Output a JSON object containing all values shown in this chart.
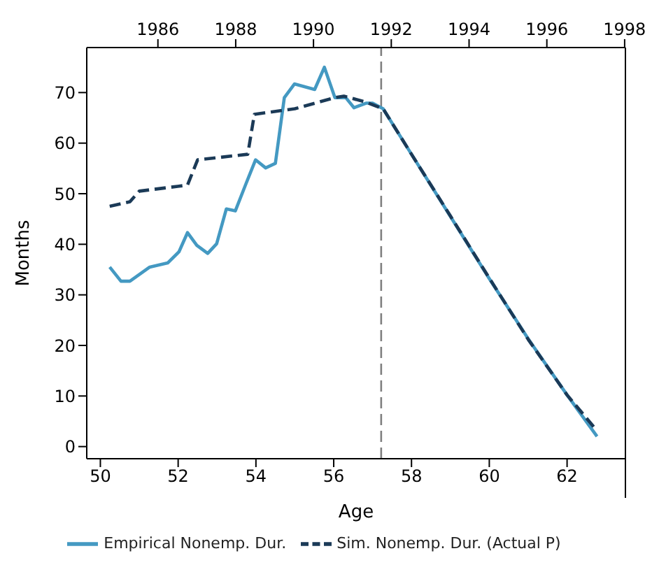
{
  "chart_data": {
    "type": "line",
    "xlabel": "Age",
    "ylabel": "Months",
    "xlim": [
      49.65,
      63.5
    ],
    "xticks": [
      50,
      52,
      54,
      56,
      58,
      60,
      62
    ],
    "x2lim": [
      1984.17,
      1998.02
    ],
    "x2ticks": [
      1986,
      1988,
      1990,
      1992,
      1994,
      1996,
      1998
    ],
    "ylim": [
      -2.4,
      78.9
    ],
    "yticks": [
      0,
      10,
      20,
      30,
      40,
      50,
      60,
      70
    ],
    "grid": false,
    "legend": "bottom",
    "ref_lines": [
      {
        "axis": "x",
        "value": 57.22,
        "color": "#808080",
        "line_style": "dashed"
      }
    ],
    "series": [
      {
        "name": "Empirical Nonemp. Dur.",
        "color": "#4499c2",
        "line_style": "solid",
        "x": [
          50.24,
          50.53,
          50.76,
          51.27,
          51.73,
          52.02,
          52.24,
          52.48,
          52.76,
          52.99,
          53.24,
          53.47,
          53.73,
          53.99,
          54.25,
          54.5,
          54.73,
          54.99,
          55.51,
          55.76,
          56.03,
          56.31,
          56.52,
          56.83,
          57.0,
          57.27,
          58.0,
          59.0,
          60.0,
          61.0,
          62.0,
          62.77
        ],
        "values": [
          35.5,
          32.7,
          32.7,
          35.5,
          36.3,
          38.5,
          42.3,
          39.8,
          38.2,
          40.1,
          47.0,
          46.6,
          51.7,
          56.7,
          55.1,
          56.0,
          69.0,
          71.7,
          70.6,
          75.0,
          69.0,
          69.0,
          67.0,
          67.9,
          67.9,
          66.8,
          57.8,
          45.5,
          33.2,
          21.3,
          10.2,
          2.0
        ]
      },
      {
        "name": "Sim. Nonemp. Dur. (Actual P)",
        "color": "#1b3a57",
        "line_style": "dashed",
        "x": [
          50.24,
          50.76,
          51.0,
          52.24,
          52.5,
          53.79,
          53.96,
          55.0,
          56.03,
          56.26,
          56.83,
          57.27,
          58.0,
          59.0,
          60.0,
          61.0,
          62.0,
          62.73
        ],
        "values": [
          47.5,
          48.4,
          50.5,
          51.7,
          56.7,
          57.8,
          65.7,
          66.8,
          69.0,
          69.3,
          68.1,
          66.8,
          57.8,
          45.6,
          33.3,
          21.2,
          10.2,
          3.5
        ]
      }
    ]
  }
}
